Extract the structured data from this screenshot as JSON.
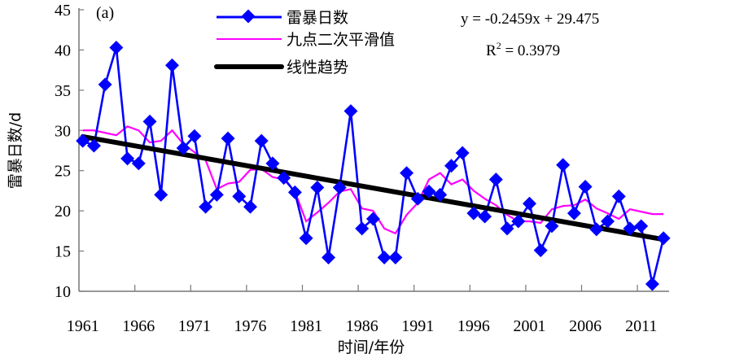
{
  "chart_data": {
    "type": "line",
    "panel_label": "(a)",
    "xlabel": "时间/年份",
    "ylabel": "雷暴日数/d",
    "ylim": [
      10,
      45
    ],
    "yticks": [
      10,
      15,
      20,
      25,
      30,
      35,
      40,
      45
    ],
    "xticks": [
      1961,
      1966,
      1971,
      1976,
      1981,
      1986,
      1991,
      1996,
      2001,
      2006,
      2011
    ],
    "grid": false,
    "legend_position": "top-center",
    "x": [
      1961,
      1962,
      1963,
      1964,
      1965,
      1966,
      1967,
      1968,
      1969,
      1970,
      1971,
      1972,
      1973,
      1974,
      1975,
      1976,
      1977,
      1978,
      1979,
      1980,
      1981,
      1982,
      1983,
      1984,
      1985,
      1986,
      1987,
      1988,
      1989,
      1990,
      1991,
      1992,
      1993,
      1994,
      1995,
      1996,
      1997,
      1998,
      1999,
      2000,
      2001,
      2002,
      2003,
      2004,
      2005,
      2006,
      2007,
      2008,
      2009,
      2010,
      2011,
      2012,
      2013
    ],
    "series": [
      {
        "name": "雷暴日数",
        "color": "#0000ff",
        "marker": "diamond",
        "values": [
          28.7,
          28.1,
          35.7,
          40.3,
          26.5,
          25.9,
          31.1,
          22.0,
          38.1,
          27.8,
          29.3,
          20.5,
          22.0,
          29.0,
          21.8,
          20.5,
          28.7,
          25.9,
          24.1,
          22.3,
          16.6,
          22.9,
          14.2,
          22.9,
          32.4,
          17.8,
          19.0,
          14.2,
          14.2,
          24.7,
          21.5,
          22.4,
          22.0,
          25.6,
          27.2,
          19.7,
          19.3,
          23.9,
          17.8,
          18.7,
          20.9,
          15.1,
          18.1,
          25.7,
          19.7,
          23.0,
          17.7,
          18.7,
          21.8,
          17.8,
          18.1,
          10.9,
          16.6
        ]
      },
      {
        "name": "九点二次平滑值",
        "color": "#ff00ff",
        "values": [
          30.0,
          30.0,
          29.7,
          29.4,
          30.5,
          30.0,
          28.5,
          28.7,
          30.0,
          28.3,
          27.3,
          26.3,
          22.7,
          23.4,
          23.6,
          25.1,
          25.2,
          24.2,
          23.9,
          22.4,
          18.7,
          19.8,
          21.0,
          22.4,
          22.7,
          20.3,
          20.0,
          17.8,
          17.2,
          19.5,
          21.0,
          23.9,
          24.7,
          23.3,
          23.9,
          22.5,
          21.5,
          20.7,
          19.5,
          18.7,
          18.7,
          18.5,
          20.2,
          20.6,
          20.7,
          21.4,
          20.3,
          19.7,
          19.0,
          20.2,
          19.9,
          19.6,
          19.6
        ]
      },
      {
        "name": "线性趋势",
        "color": "#000000",
        "slope": -0.2459,
        "intercept": 29.475
      }
    ],
    "annotations": {
      "equation": "y = -0.2459x + 29.475",
      "r2_label": "R",
      "r2_sup": "2",
      "r2_value": " = 0.3979"
    }
  }
}
